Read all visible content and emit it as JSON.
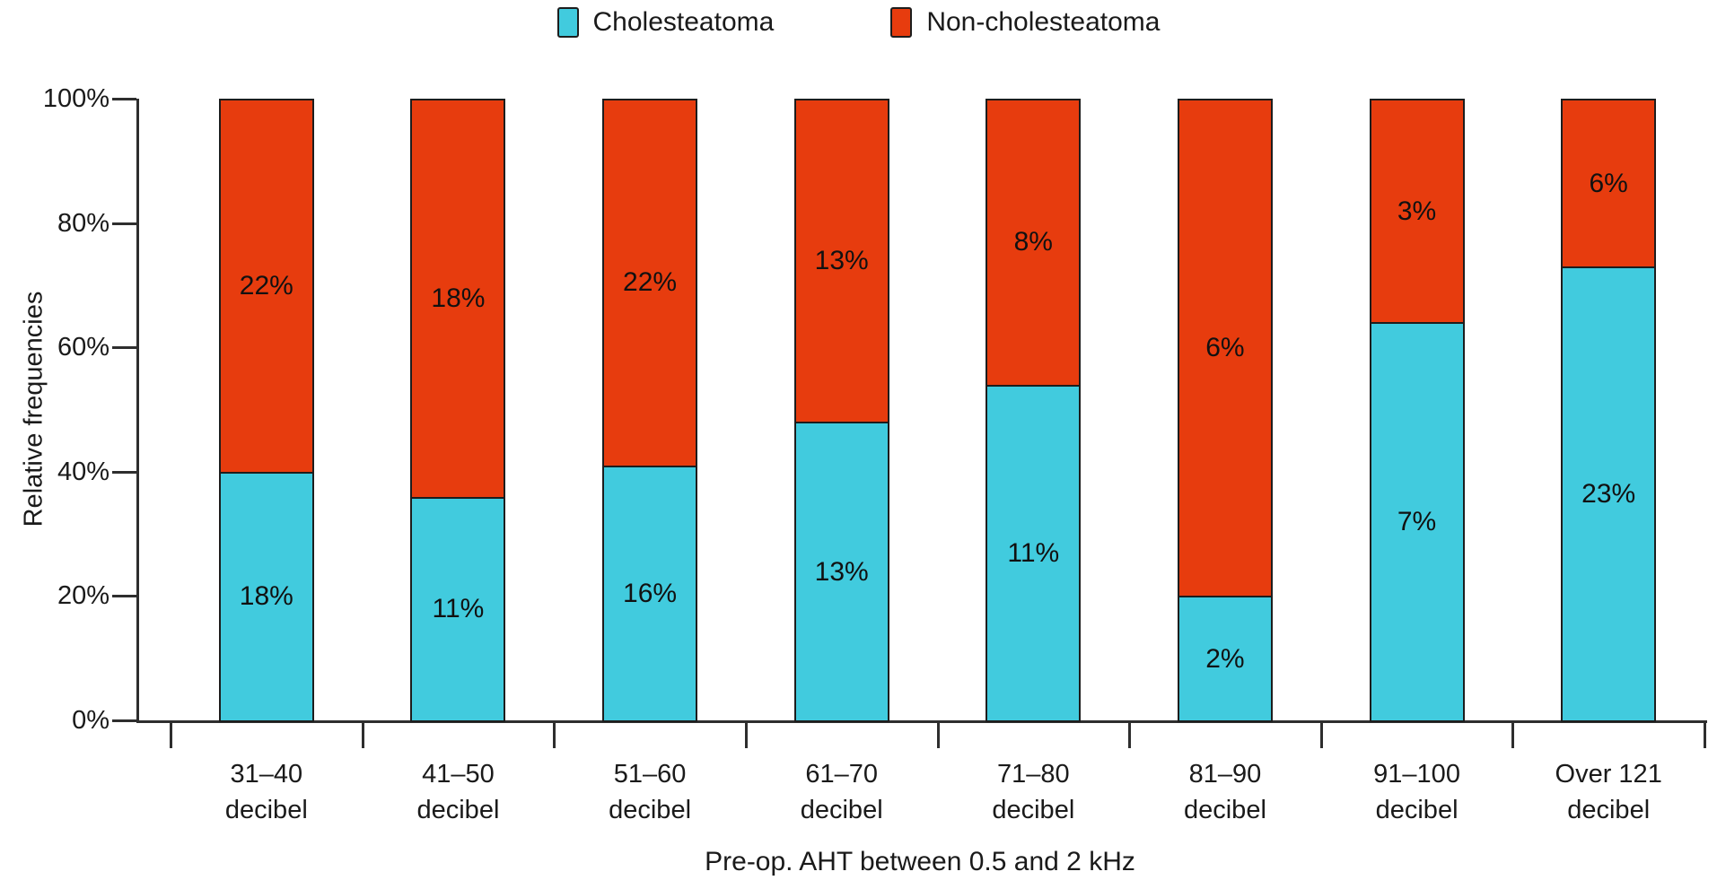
{
  "page": {
    "background": "#ffffff"
  },
  "chart_data": {
    "type": "bar",
    "stacked": true,
    "orientation": "vertical",
    "title": "",
    "categories": [
      "31–40",
      "41–50",
      "51–60",
      "61–70",
      "71–80",
      "81–90",
      "91–100",
      "Over 121"
    ],
    "category_unit": "decibel",
    "series": [
      {
        "name": "Cholesteatoma",
        "color": "#41cbde",
        "bar_heights_pct": [
          40,
          36,
          41,
          48,
          54,
          20,
          64,
          73
        ],
        "label_values": [
          "18%",
          "11%",
          "16%",
          "13%",
          "11%",
          "2%",
          "7%",
          "23%"
        ]
      },
      {
        "name": "Non-cholesteatoma",
        "color": "#e73c0e",
        "bar_heights_pct": [
          60,
          64,
          59,
          52,
          46,
          80,
          36,
          27
        ],
        "label_values": [
          "22%",
          "18%",
          "22%",
          "13%",
          "8%",
          "6%",
          "3%",
          "6%"
        ]
      }
    ],
    "xlabel": "Pre-op. AHT between 0.5 and 2 kHz",
    "ylabel": "Relative frequencies",
    "yticks": [
      "0%",
      "20%",
      "40%",
      "60%",
      "80%",
      "100%"
    ],
    "ylim": [
      0,
      100
    ],
    "grid": false,
    "legend_position": "top",
    "outline_color": "#1d1d1d",
    "axis_color": "#2e2e2e",
    "text_color": "#1a1a1a"
  }
}
